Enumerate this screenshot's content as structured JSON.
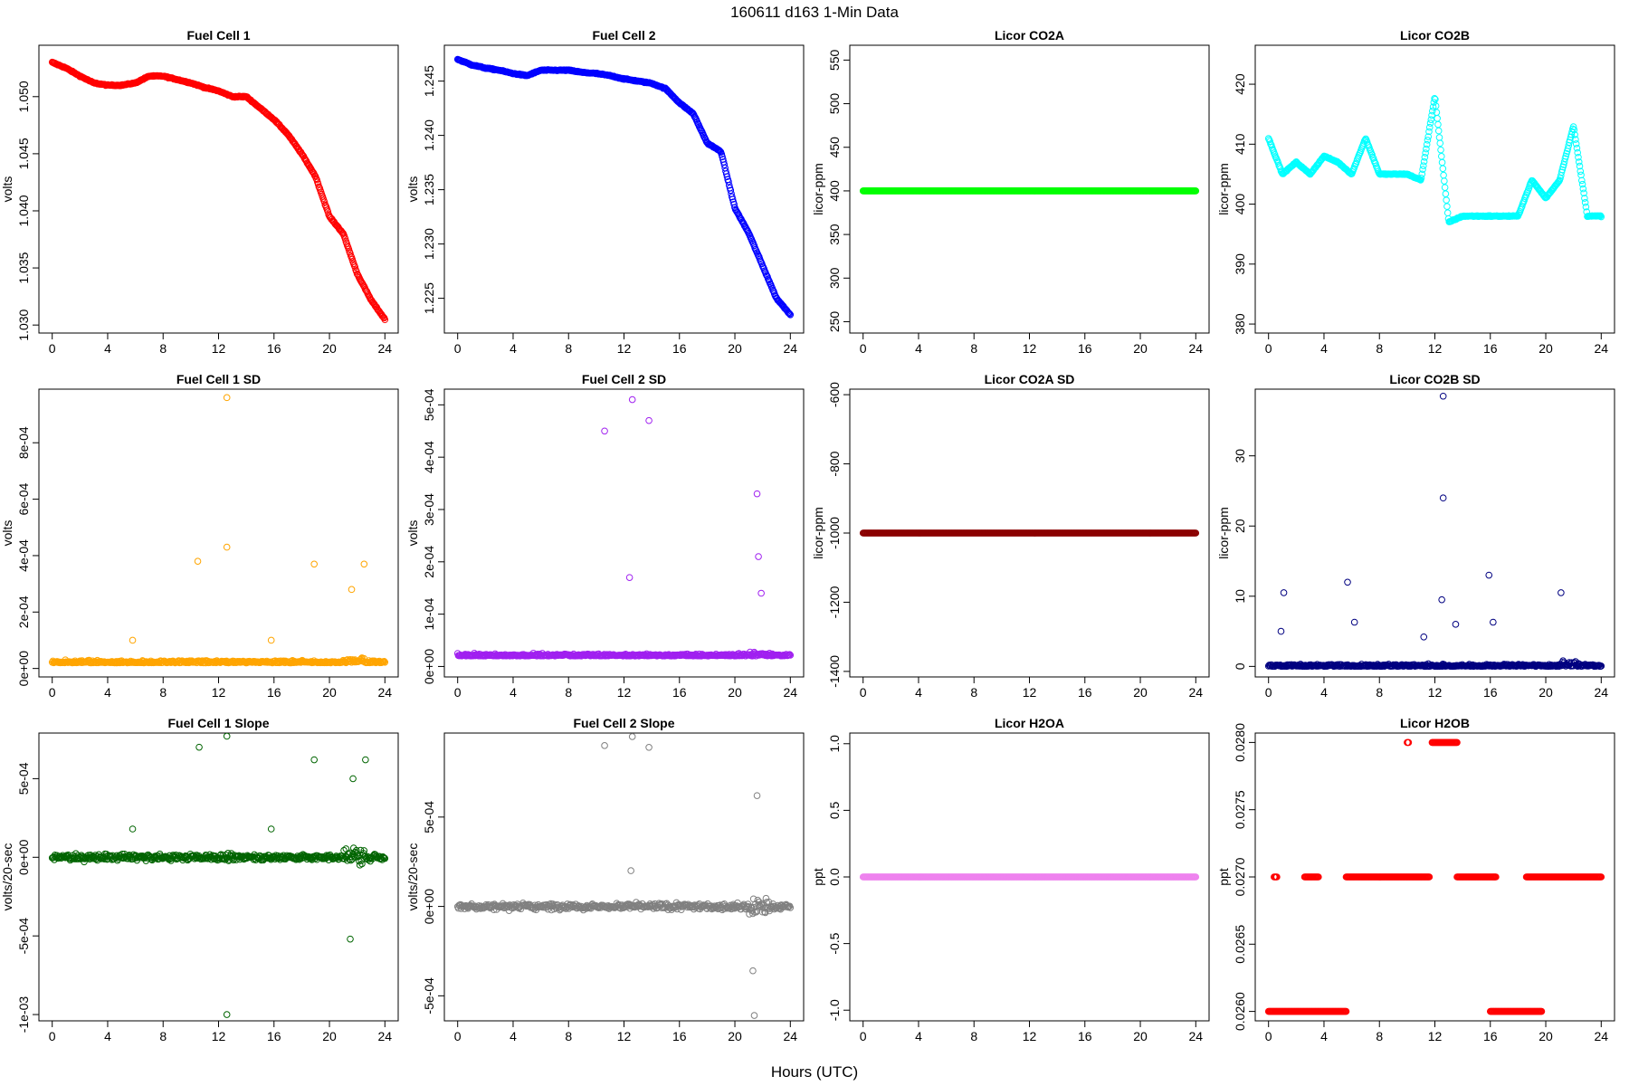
{
  "figure": {
    "title": "160611    d163    1-Min Data",
    "xlabel": "Hours (UTC)"
  },
  "chart_data": [
    {
      "id": "fc1",
      "type": "scatter",
      "title": "Fuel Cell 1",
      "ylabel": "volts",
      "color": "#ff0000",
      "xlim": [
        0,
        24
      ],
      "xticks": [
        "0",
        "4",
        "8",
        "12",
        "16",
        "20",
        "24"
      ],
      "ylim": [
        1.0293,
        1.0545
      ],
      "yticks": [
        "1.030",
        "1.035",
        "1.040",
        "1.045",
        "1.050"
      ],
      "ytick_values": [
        1.03,
        1.035,
        1.04,
        1.045,
        1.05
      ],
      "x": [
        0,
        1,
        2,
        3,
        4,
        5,
        6,
        7,
        8,
        9,
        10,
        11,
        12,
        13,
        14,
        15,
        16,
        17,
        18,
        19,
        20,
        21,
        22,
        23,
        24
      ],
      "y": [
        1.053,
        1.0525,
        1.0518,
        1.0512,
        1.051,
        1.051,
        1.0512,
        1.0518,
        1.0518,
        1.0515,
        1.0512,
        1.0508,
        1.0505,
        1.05,
        1.05,
        1.049,
        1.048,
        1.0467,
        1.045,
        1.043,
        1.0395,
        1.038,
        1.0345,
        1.0322,
        1.0305
      ]
    },
    {
      "id": "fc2",
      "type": "scatter",
      "title": "Fuel Cell 2",
      "ylabel": "volts",
      "color": "#0000ff",
      "xlim": [
        0,
        24
      ],
      "xticks": [
        "0",
        "4",
        "8",
        "12",
        "16",
        "20",
        "24"
      ],
      "ylim": [
        1.2218,
        1.2483
      ],
      "yticks": [
        "1.225",
        "1.230",
        "1.235",
        "1.240",
        "1.245"
      ],
      "ytick_values": [
        1.225,
        1.23,
        1.235,
        1.24,
        1.245
      ],
      "x": [
        0,
        1,
        2,
        3,
        4,
        5,
        6,
        7,
        8,
        9,
        10,
        11,
        12,
        13,
        14,
        15,
        16,
        17,
        18,
        19,
        20,
        21,
        22,
        23,
        24
      ],
      "y": [
        1.247,
        1.2465,
        1.2462,
        1.246,
        1.2457,
        1.2455,
        1.246,
        1.246,
        1.246,
        1.2458,
        1.2457,
        1.2455,
        1.2452,
        1.245,
        1.2448,
        1.2443,
        1.243,
        1.242,
        1.2393,
        1.2385,
        1.2333,
        1.231,
        1.228,
        1.225,
        1.2235
      ]
    },
    {
      "id": "co2a",
      "type": "scatter",
      "title": "Licor CO2A",
      "ylabel": "licor-ppm",
      "color": "#00ff00",
      "xlim": [
        0,
        24
      ],
      "xticks": [
        "0",
        "4",
        "8",
        "12",
        "16",
        "20",
        "24"
      ],
      "ylim": [
        237,
        567
      ],
      "yticks": [
        "250",
        "300",
        "350",
        "400",
        "450",
        "500",
        "550"
      ],
      "ytick_values": [
        250,
        300,
        350,
        400,
        450,
        500,
        550
      ],
      "x": [
        0,
        24
      ],
      "y": [
        400,
        400
      ]
    },
    {
      "id": "co2b",
      "type": "scatter",
      "title": "Licor CO2B",
      "ylabel": "licor-ppm",
      "color": "#00ffff",
      "xlim": [
        0,
        24
      ],
      "xticks": [
        "0",
        "4",
        "8",
        "12",
        "16",
        "20",
        "24"
      ],
      "ylim": [
        378.5,
        426.5
      ],
      "yticks": [
        "380",
        "390",
        "400",
        "410",
        "420"
      ],
      "ytick_values": [
        380,
        390,
        400,
        410,
        420
      ],
      "x": [
        0,
        1,
        2,
        3,
        4,
        5,
        6,
        7,
        8,
        9,
        10,
        11,
        12,
        13,
        14,
        15,
        16,
        17,
        18,
        19,
        20,
        21,
        22,
        23,
        24
      ],
      "y": [
        411,
        405,
        407,
        405,
        408,
        407,
        405,
        411,
        405,
        405,
        405,
        404,
        418,
        397,
        398,
        398,
        398,
        398,
        398,
        404,
        401,
        404,
        413,
        398,
        398
      ]
    },
    {
      "id": "fc1sd",
      "type": "scatter",
      "title": "Fuel Cell 1 SD",
      "ylabel": "volts",
      "color": "#ffa500",
      "xlim": [
        0,
        24
      ],
      "xticks": [
        "0",
        "4",
        "8",
        "12",
        "16",
        "20",
        "24"
      ],
      "ylim": [
        -3e-05,
        0.00099
      ],
      "yticks": [
        "0e+00",
        "2e-04",
        "4e-04",
        "6e-04",
        "8e-04"
      ],
      "ytick_values": [
        0,
        0.0002,
        0.0004,
        0.0006,
        0.0008
      ],
      "baseline": 2e-05,
      "outliers_x": [
        10.5,
        12.6,
        12.6,
        18.9,
        22.5,
        21.6,
        5.8,
        15.8
      ],
      "outliers_y": [
        0.00038,
        0.00096,
        0.00043,
        0.00037,
        0.00037,
        0.00028,
        0.0001,
        0.0001
      ]
    },
    {
      "id": "fc2sd",
      "type": "scatter",
      "title": "Fuel Cell 2 SD",
      "ylabel": "volts",
      "color": "#a020f0",
      "xlim": [
        0,
        24
      ],
      "xticks": [
        "0",
        "4",
        "8",
        "12",
        "16",
        "20",
        "24"
      ],
      "ylim": [
        -2e-05,
        0.00053
      ],
      "yticks": [
        "0e+00",
        "1e-04",
        "2e-04",
        "3e-04",
        "4e-04",
        "5e-04"
      ],
      "ytick_values": [
        0,
        0.0001,
        0.0002,
        0.0003,
        0.0004,
        0.0005
      ],
      "baseline": 2e-05,
      "outliers_x": [
        10.6,
        12.6,
        13.8,
        21.6,
        12.4,
        21.7,
        21.9
      ],
      "outliers_y": [
        0.00045,
        0.00051,
        0.00047,
        0.00033,
        0.00017,
        0.00021,
        0.00014
      ]
    },
    {
      "id": "co2asd",
      "type": "scatter",
      "title": "Licor CO2A SD",
      "ylabel": "licor-ppm",
      "color": "#8b0000",
      "xlim": [
        0,
        24
      ],
      "xticks": [
        "0",
        "4",
        "8",
        "12",
        "16",
        "20",
        "24"
      ],
      "ylim": [
        -1416,
        -584
      ],
      "yticks": [
        "-1400",
        "-1200",
        "-1000",
        "-800",
        "-600"
      ],
      "ytick_values": [
        -1400,
        -1200,
        -1000,
        -800,
        -600
      ],
      "x": [
        0,
        24
      ],
      "y": [
        -1000,
        -1000
      ]
    },
    {
      "id": "co2bsd",
      "type": "scatter",
      "title": "Licor CO2B SD",
      "ylabel": "licor-ppm",
      "color": "#000080",
      "xlim": [
        0,
        24
      ],
      "xticks": [
        "0",
        "4",
        "8",
        "12",
        "16",
        "20",
        "24"
      ],
      "ylim": [
        -1.5,
        39.5
      ],
      "yticks": [
        "0",
        "10",
        "20",
        "30"
      ],
      "ytick_values": [
        0,
        10,
        20,
        30
      ],
      "baseline": 0,
      "outliers_x": [
        12.6,
        12.6,
        5.7,
        15.9,
        1.1,
        21.1,
        12.5,
        0.9,
        11.2,
        6.2,
        16.2,
        13.5
      ],
      "outliers_y": [
        38.5,
        24,
        12,
        13,
        10.5,
        10.5,
        9.5,
        5,
        4.2,
        6.3,
        6.3,
        6
      ]
    },
    {
      "id": "fc1slope",
      "type": "scatter",
      "title": "Fuel Cell 1 Slope",
      "ylabel": "volts/20-sec",
      "color": "#006400",
      "xlim": [
        0,
        24
      ],
      "xticks": [
        "0",
        "4",
        "8",
        "12",
        "16",
        "20",
        "24"
      ],
      "ylim": [
        -0.00104,
        0.00079
      ],
      "yticks": [
        "-1e-03",
        "-5e-04",
        "0e+00",
        "5e-04"
      ],
      "ytick_values": [
        -0.001,
        -0.0005,
        0,
        0.0005
      ],
      "baseline": 0,
      "outliers_x": [
        12.6,
        10.6,
        22.6,
        18.9,
        21.7,
        12.6,
        21.5,
        5.8,
        15.8
      ],
      "outliers_y": [
        0.00077,
        0.0007,
        0.00062,
        0.00062,
        0.0005,
        -0.001,
        -0.00052,
        0.00018,
        0.00018
      ]
    },
    {
      "id": "fc2slope",
      "type": "scatter",
      "title": "Fuel Cell 2 Slope",
      "ylabel": "volts/20-sec",
      "color": "#808080",
      "xlim": [
        0,
        24
      ],
      "xticks": [
        "0",
        "4",
        "8",
        "12",
        "16",
        "20",
        "24"
      ],
      "ylim": [
        -0.00064,
        0.00097
      ],
      "yticks": [
        "-5e-04",
        "0e+00",
        "5e-04"
      ],
      "ytick_values": [
        -0.0005,
        0,
        0.0005
      ],
      "baseline": 0,
      "outliers_x": [
        12.6,
        10.6,
        13.8,
        21.6,
        21.4,
        12.5,
        21.3
      ],
      "outliers_y": [
        0.00095,
        0.0009,
        0.00089,
        0.00062,
        -0.00061,
        0.0002,
        -0.00036
      ]
    },
    {
      "id": "h2oa",
      "type": "scatter",
      "title": "Licor H2OA",
      "ylabel": "ppt",
      "color": "#ee82ee",
      "xlim": [
        0,
        24
      ],
      "xticks": [
        "0",
        "4",
        "8",
        "12",
        "16",
        "20",
        "24"
      ],
      "ylim": [
        -1.08,
        1.08
      ],
      "yticks": [
        "-1.0",
        "-0.5",
        "0.0",
        "0.5",
        "1.0"
      ],
      "ytick_values": [
        -1,
        -0.5,
        0,
        0.5,
        1
      ],
      "x": [
        0,
        24
      ],
      "y": [
        0,
        0
      ]
    },
    {
      "id": "h2ob",
      "type": "scatter",
      "title": "Licor H2OB",
      "ylabel": "ppt",
      "color": "#ff0000",
      "xlim": [
        0,
        24
      ],
      "xticks": [
        "0",
        "4",
        "8",
        "12",
        "16",
        "20",
        "24"
      ],
      "ylim": [
        0.02593,
        0.02807
      ],
      "yticks": [
        "0.0260",
        "0.0265",
        "0.0270",
        "0.0275",
        "0.0280"
      ],
      "ytick_values": [
        0.026,
        0.0265,
        0.027,
        0.0275,
        0.028
      ],
      "segments": [
        {
          "x0": 0.0,
          "x1": 5.6,
          "y": 0.026
        },
        {
          "x0": 0.4,
          "x1": 0.6,
          "y": 0.027
        },
        {
          "x0": 2.6,
          "x1": 3.6,
          "y": 0.027
        },
        {
          "x0": 5.6,
          "x1": 11.6,
          "y": 0.027
        },
        {
          "x0": 10.0,
          "x1": 10.1,
          "y": 0.028
        },
        {
          "x0": 11.8,
          "x1": 13.6,
          "y": 0.028
        },
        {
          "x0": 13.6,
          "x1": 16.4,
          "y": 0.027
        },
        {
          "x0": 16.0,
          "x1": 19.7,
          "y": 0.026
        },
        {
          "x0": 18.6,
          "x1": 24.0,
          "y": 0.027
        }
      ]
    }
  ]
}
